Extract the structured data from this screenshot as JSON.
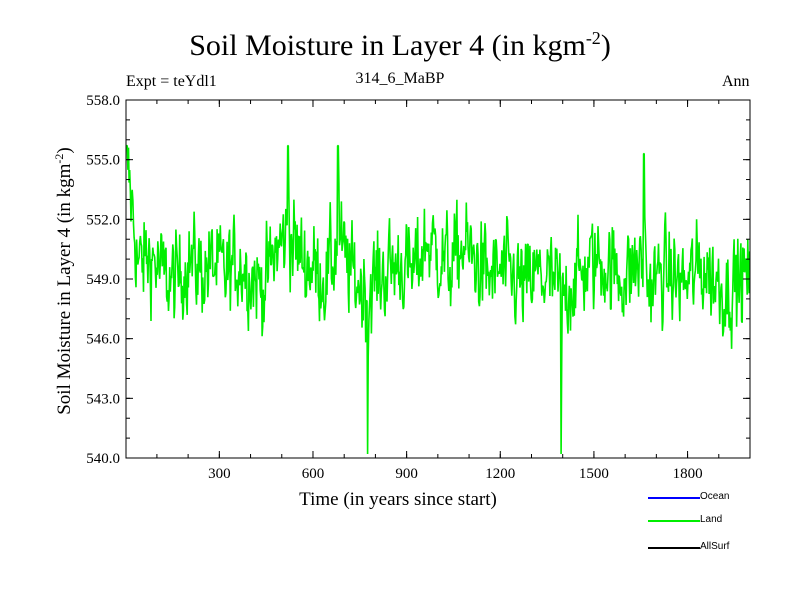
{
  "header": {
    "title_main": "Soil Moisture in Layer 4 (in kgm",
    "title_sup": "-2",
    "title_close": ")",
    "expt": "Expt = teYdl1",
    "run": "314_6_MaBP",
    "period": "Ann"
  },
  "colors": {
    "land": "#00ee00",
    "ocean": "#0000ff",
    "allsurf": "#000000"
  },
  "legend": [
    {
      "label": "Ocean",
      "color": "#0000ff"
    },
    {
      "label": "Land",
      "color": "#00ee00"
    },
    {
      "label": "AllSurf",
      "color": "#000000"
    }
  ],
  "chart_data": {
    "type": "line",
    "title": "Soil Moisture in Layer 4 (in kgm-2)",
    "xlabel": "Time (in years since start)",
    "ylabel_main": "Soil Moisture in Layer 4 (in kgm",
    "ylabel_sup": "-2",
    "ylabel_close": ")",
    "xlim": [
      1,
      2000
    ],
    "ylim": [
      540.0,
      558.0
    ],
    "x_ticks": [
      300,
      600,
      900,
      1200,
      1500,
      1800
    ],
    "y_ticks": [
      540.0,
      543.0,
      546.0,
      549.0,
      552.0,
      555.0,
      558.0
    ],
    "y_tick_labels": [
      "540.0",
      "543.0",
      "546.0",
      "549.0",
      "552.0",
      "555.0",
      "558.0"
    ],
    "series": [
      {
        "name": "Land",
        "color": "#00ee00",
        "x": [
          1,
          40,
          80,
          120,
          160,
          200,
          240,
          280,
          320,
          360,
          400,
          440,
          480,
          520,
          560,
          600,
          640,
          680,
          720,
          760,
          800,
          840,
          880,
          920,
          960,
          1000,
          1040,
          1080,
          1120,
          1160,
          1200,
          1240,
          1280,
          1320,
          1360,
          1400,
          1440,
          1480,
          1520,
          1560,
          1600,
          1640,
          1680,
          1720,
          1760,
          1800,
          1840,
          1880,
          1920,
          1960,
          2000
        ],
        "values": [
          555.3,
          549.6,
          550.2,
          549.1,
          548.8,
          550.0,
          549.4,
          549.7,
          549.2,
          549.9,
          549.3,
          548.6,
          550.4,
          551.2,
          550.1,
          549.6,
          549.0,
          550.8,
          549.3,
          548.5,
          548.9,
          549.5,
          549.8,
          549.2,
          550.9,
          550.3,
          549.6,
          550.7,
          549.9,
          549.1,
          549.4,
          549.0,
          548.6,
          549.2,
          548.9,
          548.3,
          549.0,
          549.6,
          550.0,
          549.4,
          549.1,
          549.8,
          548.7,
          549.3,
          549.0,
          548.8,
          549.6,
          549.1,
          548.4,
          548.9,
          549.2
        ],
        "approx_range": [
          540.2,
          555.7
        ],
        "extrema": [
          {
            "x": 775,
            "value": 540.2
          },
          {
            "x": 1395,
            "value": 540.0
          },
          {
            "x": 520,
            "value": 555.7
          },
          {
            "x": 680,
            "value": 555.7
          },
          {
            "x": 1660,
            "value": 555.3
          }
        ]
      },
      {
        "name": "Ocean",
        "color": "#0000ff",
        "values": []
      },
      {
        "name": "AllSurf",
        "color": "#000000",
        "values": []
      }
    ]
  }
}
